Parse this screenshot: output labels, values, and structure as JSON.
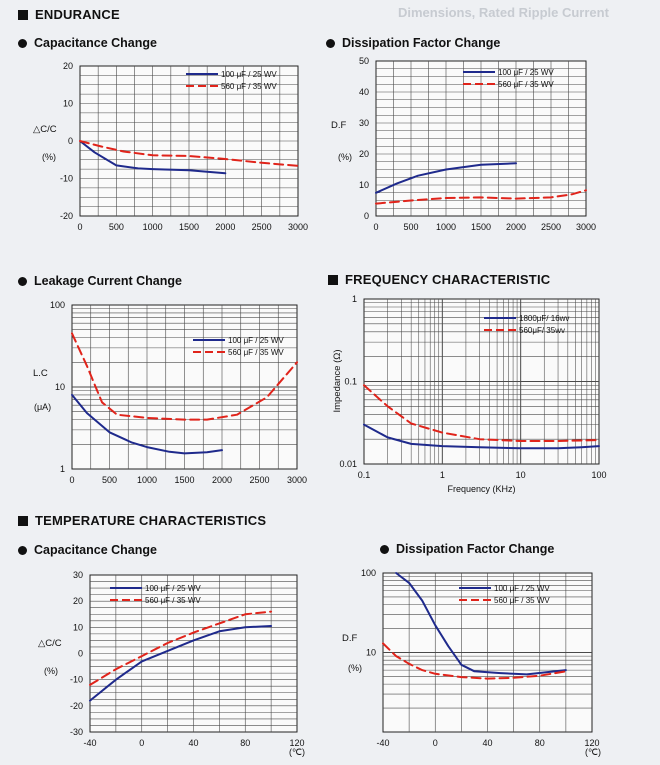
{
  "sections": {
    "endurance": "ENDURANCE",
    "frequency": "FREQUENCY CHARACTERISTIC",
    "temperature": "TEMPERATURE CHARACTERISTICS"
  },
  "background_text": "Dimensions, Rated Ripple Current",
  "colors": {
    "series_a": "#1f2a8c",
    "series_b": "#e0241b",
    "grid": "#4a4a4a"
  },
  "chart_data": [
    {
      "id": "endurance-cap",
      "type": "line",
      "title": "Capacitance Change",
      "ylabel": "△C/C",
      "yunit": "(%)",
      "xlim": [
        0,
        3000
      ],
      "ylim": [
        -20,
        20
      ],
      "xticks": [
        0,
        500,
        1000,
        1500,
        2000,
        2500,
        3000
      ],
      "yticks": [
        -20,
        -10,
        0,
        10,
        20
      ],
      "series": [
        {
          "name": "100 μF / 25 WV",
          "x": [
            0,
            200,
            500,
            800,
            1000,
            1500,
            2000
          ],
          "y": [
            0,
            -3,
            -6.5,
            -7.3,
            -7.5,
            -7.8,
            -8.6
          ]
        },
        {
          "name": "560 μF / 35 WV",
          "x": [
            0,
            300,
            600,
            1000,
            1500,
            2000,
            2500,
            3000
          ],
          "y": [
            0,
            -1.5,
            -2.8,
            -3.8,
            -4.0,
            -4.8,
            -5.8,
            -6.6
          ]
        }
      ]
    },
    {
      "id": "endurance-df",
      "type": "line",
      "title": "Dissipation Factor Change",
      "ylabel": "D.F",
      "yunit": "(%)",
      "xlim": [
        0,
        3000
      ],
      "ylim": [
        0,
        50
      ],
      "xticks": [
        0,
        500,
        1000,
        1500,
        2000,
        2500,
        3000
      ],
      "yticks": [
        0,
        10,
        20,
        30,
        40,
        50
      ],
      "series": [
        {
          "name": "100 μF / 25 WV",
          "x": [
            0,
            300,
            600,
            1000,
            1500,
            2000
          ],
          "y": [
            7.5,
            10.5,
            13,
            15,
            16.5,
            17
          ]
        },
        {
          "name": "560 μF / 35 WV",
          "x": [
            0,
            500,
            1000,
            1500,
            2000,
            2500,
            2800,
            3000
          ],
          "y": [
            4,
            5,
            5.8,
            6,
            5.6,
            6,
            7,
            8.3
          ]
        }
      ]
    },
    {
      "id": "leakage",
      "type": "line",
      "title": "Leakage Current Change",
      "ylabel": "L.C",
      "yunit": "(μA)",
      "yscale": "log",
      "xlim": [
        0,
        3000
      ],
      "ylim": [
        1,
        100
      ],
      "xticks": [
        0,
        500,
        1000,
        1500,
        2000,
        2500,
        3000
      ],
      "yticks": [
        1,
        10,
        100
      ],
      "series": [
        {
          "name": "100 μF / 25 WV",
          "x": [
            0,
            200,
            500,
            800,
            1000,
            1300,
            1500,
            1800,
            2000
          ],
          "y": [
            8,
            4.8,
            2.8,
            2.1,
            1.85,
            1.62,
            1.55,
            1.6,
            1.7
          ]
        },
        {
          "name": "560 μF / 35 WV",
          "x": [
            0,
            200,
            400,
            600,
            1000,
            1500,
            1800,
            2200,
            2600,
            3000
          ],
          "y": [
            45,
            18,
            6.5,
            4.6,
            4.2,
            4.0,
            4.0,
            4.6,
            7.5,
            20
          ]
        }
      ]
    },
    {
      "id": "frequency",
      "type": "line",
      "title": "",
      "xlabel": "Frequency (KHz)",
      "ylabel": "Impedance (Ω)",
      "xscale": "log",
      "yscale": "log",
      "xlim": [
        0.1,
        100
      ],
      "ylim": [
        0.01,
        1
      ],
      "xticks": [
        0.1,
        1,
        10,
        100
      ],
      "yticks": [
        0.01,
        0.1,
        1
      ],
      "series": [
        {
          "name": "1800μF/ 16wv",
          "x": [
            0.1,
            0.2,
            0.4,
            1,
            3,
            10,
            30,
            60,
            100
          ],
          "y": [
            0.03,
            0.021,
            0.0175,
            0.0165,
            0.016,
            0.0155,
            0.0155,
            0.016,
            0.0165
          ]
        },
        {
          "name": "560μF/ 35wv",
          "x": [
            0.1,
            0.2,
            0.4,
            1,
            3,
            10,
            30,
            100
          ],
          "y": [
            0.09,
            0.05,
            0.031,
            0.024,
            0.02,
            0.019,
            0.019,
            0.0195
          ]
        }
      ]
    },
    {
      "id": "temp-cap",
      "type": "line",
      "title": "Capacitance Change",
      "ylabel": "△C/C",
      "yunit": "(%)",
      "xunit": "(℃)",
      "xlim": [
        -40,
        120
      ],
      "ylim": [
        -30,
        30
      ],
      "xticks": [
        -40,
        0,
        40,
        80,
        120
      ],
      "yticks": [
        -30,
        -20,
        -10,
        0,
        10,
        20,
        30
      ],
      "series": [
        {
          "name": "100 μF / 25 WV",
          "x": [
            -40,
            -20,
            0,
            20,
            40,
            60,
            80,
            100
          ],
          "y": [
            -18,
            -10,
            -3,
            1,
            5,
            8.5,
            10,
            10.5
          ]
        },
        {
          "name": "560 μF / 35 WV",
          "x": [
            -40,
            -20,
            0,
            20,
            40,
            60,
            80,
            100
          ],
          "y": [
            -12,
            -6,
            -1,
            4,
            8,
            11.5,
            15,
            16
          ]
        }
      ]
    },
    {
      "id": "temp-df",
      "type": "line",
      "title": "Dissipation Factor Change",
      "ylabel": "D.F",
      "yunit": "(%)",
      "xunit": "(℃)",
      "yscale": "log",
      "xlim": [
        -40,
        120
      ],
      "ylim": [
        1,
        100
      ],
      "xticks": [
        -40,
        0,
        40,
        80,
        120
      ],
      "yticks": [
        10,
        100
      ],
      "series": [
        {
          "name": "100 μF / 25 WV",
          "x": [
            -30,
            -20,
            -10,
            0,
            10,
            20,
            30,
            50,
            70,
            100
          ],
          "y": [
            100,
            75,
            45,
            22,
            12,
            7,
            5.8,
            5.5,
            5.3,
            6
          ]
        },
        {
          "name": "560 μF / 35 WV",
          "x": [
            -40,
            -30,
            -20,
            -10,
            0,
            20,
            40,
            60,
            80,
            100
          ],
          "y": [
            13,
            9,
            7.2,
            6,
            5.4,
            4.9,
            4.7,
            4.8,
            5.1,
            5.8
          ]
        }
      ]
    }
  ]
}
